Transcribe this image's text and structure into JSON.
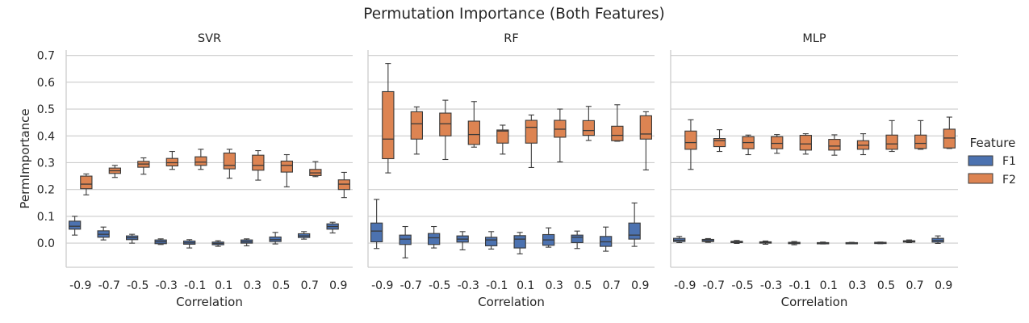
{
  "figure_title": "Permutation Importance (Both Features)",
  "legend": {
    "title": "Feature",
    "entries": [
      {
        "label": "F1",
        "color": "#4c72b0"
      },
      {
        "label": "F2",
        "color": "#dd8452"
      }
    ]
  },
  "colors": {
    "F1": "#4c72b0",
    "F2": "#dd8452",
    "edge": "#3a3a3a",
    "grid": "#cccccc",
    "spine": "#cccccc"
  },
  "chart_data": [
    {
      "type": "box",
      "title": "SVR",
      "xlabel": "Correlation",
      "ylabel": "PermImportance",
      "ylim": [
        -0.09,
        0.72
      ],
      "yticks": [
        "0.0",
        "0.1",
        "0.2",
        "0.3",
        "0.4",
        "0.5",
        "0.6",
        "0.7"
      ],
      "grid": true,
      "categories": [
        "-0.9",
        "-0.7",
        "-0.5",
        "-0.3",
        "-0.1",
        "0.1",
        "0.3",
        "0.5",
        "0.7",
        "0.9"
      ],
      "series": [
        {
          "name": "F1",
          "boxes": [
            [
              0.03,
              0.052,
              0.063,
              0.082,
              0.1
            ],
            [
              0.012,
              0.022,
              0.033,
              0.046,
              0.06
            ],
            [
              0.0,
              0.013,
              0.02,
              0.027,
              0.033
            ],
            [
              -0.005,
              -0.002,
              0.005,
              0.012,
              0.016
            ],
            [
              -0.018,
              -0.004,
              0.001,
              0.008,
              0.013
            ],
            [
              -0.012,
              -0.006,
              -0.001,
              0.004,
              0.009
            ],
            [
              -0.01,
              0.0,
              0.005,
              0.012,
              0.016
            ],
            [
              -0.003,
              0.006,
              0.013,
              0.023,
              0.04
            ],
            [
              0.015,
              0.021,
              0.027,
              0.035,
              0.043
            ],
            [
              0.038,
              0.052,
              0.062,
              0.072,
              0.078
            ]
          ]
        },
        {
          "name": "F2",
          "boxes": [
            [
              0.18,
              0.203,
              0.22,
              0.25,
              0.258
            ],
            [
              0.245,
              0.26,
              0.27,
              0.28,
              0.29
            ],
            [
              0.257,
              0.283,
              0.295,
              0.305,
              0.318
            ],
            [
              0.275,
              0.288,
              0.3,
              0.316,
              0.342
            ],
            [
              0.275,
              0.29,
              0.302,
              0.322,
              0.35
            ],
            [
              0.242,
              0.277,
              0.29,
              0.336,
              0.35
            ],
            [
              0.235,
              0.272,
              0.29,
              0.328,
              0.345
            ],
            [
              0.21,
              0.265,
              0.29,
              0.306,
              0.33
            ],
            [
              0.248,
              0.252,
              0.262,
              0.275,
              0.304
            ],
            [
              0.17,
              0.2,
              0.22,
              0.236,
              0.264
            ]
          ]
        }
      ]
    },
    {
      "type": "box",
      "title": "RF",
      "xlabel": "Correlation",
      "ylabel": "",
      "ylim": [
        -0.09,
        0.72
      ],
      "grid": true,
      "categories": [
        "-0.9",
        "-0.7",
        "-0.5",
        "-0.3",
        "-0.1",
        "0.1",
        "0.3",
        "0.5",
        "0.7",
        "0.9"
      ],
      "series": [
        {
          "name": "F1",
          "boxes": [
            [
              -0.02,
              0.005,
              0.045,
              0.075,
              0.163
            ],
            [
              -0.055,
              -0.005,
              0.015,
              0.03,
              0.062
            ],
            [
              -0.018,
              -0.005,
              0.02,
              0.036,
              0.062
            ],
            [
              -0.025,
              0.004,
              0.015,
              0.027,
              0.043
            ],
            [
              -0.022,
              -0.01,
              0.012,
              0.022,
              0.043
            ],
            [
              -0.04,
              -0.018,
              0.015,
              0.028,
              0.04
            ],
            [
              -0.015,
              -0.008,
              0.012,
              0.032,
              0.057
            ],
            [
              -0.02,
              0.002,
              0.022,
              0.03,
              0.045
            ],
            [
              -0.03,
              -0.012,
              0.005,
              0.025,
              0.06
            ],
            [
              -0.012,
              0.015,
              0.03,
              0.075,
              0.15
            ]
          ]
        },
        {
          "name": "F2",
          "boxes": [
            [
              0.262,
              0.315,
              0.388,
              0.565,
              0.67
            ],
            [
              0.332,
              0.388,
              0.445,
              0.49,
              0.508
            ],
            [
              0.312,
              0.4,
              0.445,
              0.485,
              0.533
            ],
            [
              0.358,
              0.368,
              0.405,
              0.455,
              0.528
            ],
            [
              0.332,
              0.373,
              0.418,
              0.422,
              0.44
            ],
            [
              0.282,
              0.373,
              0.432,
              0.458,
              0.478
            ],
            [
              0.303,
              0.395,
              0.425,
              0.458,
              0.5
            ],
            [
              0.383,
              0.402,
              0.42,
              0.457,
              0.51
            ],
            [
              0.38,
              0.382,
              0.402,
              0.436,
              0.516
            ],
            [
              0.273,
              0.388,
              0.407,
              0.475,
              0.49
            ]
          ]
        }
      ]
    },
    {
      "type": "box",
      "title": "MLP",
      "xlabel": "Correlation",
      "ylabel": "",
      "ylim": [
        -0.09,
        0.72
      ],
      "grid": true,
      "categories": [
        "-0.9",
        "-0.7",
        "-0.5",
        "-0.3",
        "-0.1",
        "0.1",
        "0.3",
        "0.5",
        "0.7",
        "0.9"
      ],
      "series": [
        {
          "name": "F1",
          "boxes": [
            [
              0.002,
              0.006,
              0.011,
              0.018,
              0.025
            ],
            [
              0.003,
              0.006,
              0.009,
              0.014,
              0.017
            ],
            [
              -0.001,
              0.002,
              0.004,
              0.007,
              0.01
            ],
            [
              -0.004,
              0.0,
              0.002,
              0.005,
              0.008
            ],
            [
              -0.006,
              -0.002,
              0.001,
              0.003,
              0.006
            ],
            [
              -0.003,
              -0.001,
              0.001,
              0.002,
              0.004
            ],
            [
              -0.001,
              0.0,
              0.001,
              0.002,
              0.003
            ],
            [
              -0.002,
              0.0,
              0.002,
              0.003,
              0.004
            ],
            [
              0.002,
              0.004,
              0.006,
              0.009,
              0.012
            ],
            [
              -0.001,
              0.004,
              0.01,
              0.018,
              0.027
            ]
          ]
        },
        {
          "name": "F2",
          "boxes": [
            [
              0.275,
              0.35,
              0.375,
              0.418,
              0.46
            ],
            [
              0.342,
              0.36,
              0.382,
              0.39,
              0.423
            ],
            [
              0.33,
              0.352,
              0.375,
              0.397,
              0.403
            ],
            [
              0.335,
              0.352,
              0.372,
              0.397,
              0.405
            ],
            [
              0.332,
              0.347,
              0.37,
              0.402,
              0.408
            ],
            [
              0.328,
              0.347,
              0.362,
              0.387,
              0.404
            ],
            [
              0.33,
              0.35,
              0.365,
              0.382,
              0.408
            ],
            [
              0.342,
              0.35,
              0.37,
              0.403,
              0.457
            ],
            [
              0.35,
              0.353,
              0.372,
              0.403,
              0.457
            ],
            [
              0.353,
              0.355,
              0.392,
              0.425,
              0.47
            ]
          ]
        }
      ]
    }
  ]
}
